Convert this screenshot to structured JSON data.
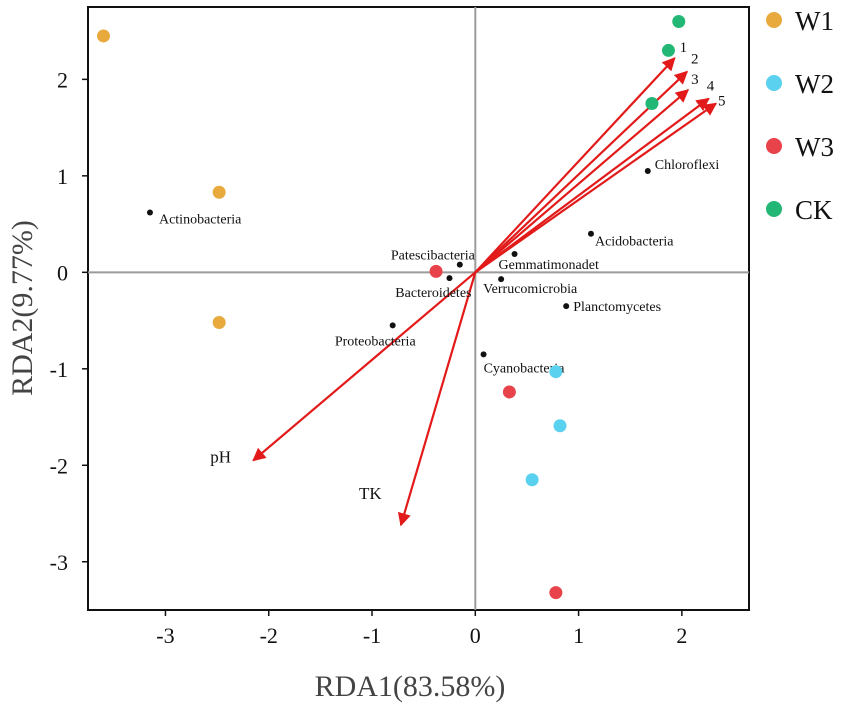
{
  "chart_data": {
    "type": "scatter",
    "title": "",
    "xlabel": "RDA1(83.58%)",
    "ylabel": "RDA2(9.77%)",
    "xlim": [
      -3.75,
      2.65
    ],
    "ylim": [
      -3.5,
      2.75
    ],
    "xticks": [
      -3,
      -2,
      -1,
      0,
      1,
      2
    ],
    "yticks": [
      2,
      1,
      0,
      -1,
      -2,
      -3
    ],
    "grid": false,
    "legend_position": "right",
    "colors": {
      "W1": "#E8AA3C",
      "W2": "#5BD1F0",
      "W3": "#E8434B",
      "CK": "#23B776",
      "arrow": "#E21A1A",
      "species": "#111111",
      "zero_line": "#9B9B9B"
    },
    "series": [
      {
        "name": "W1",
        "points": [
          [
            -3.6,
            2.45
          ],
          [
            -2.48,
            0.83
          ],
          [
            -2.48,
            -0.52
          ]
        ]
      },
      {
        "name": "W2",
        "points": [
          [
            0.78,
            -1.03
          ],
          [
            0.82,
            -1.59
          ],
          [
            0.55,
            -2.15
          ]
        ]
      },
      {
        "name": "W3",
        "points": [
          [
            -0.38,
            0.01
          ],
          [
            0.33,
            -1.24
          ],
          [
            0.78,
            -3.32
          ]
        ]
      },
      {
        "name": "CK",
        "points": [
          [
            1.97,
            2.6
          ],
          [
            1.87,
            2.3
          ],
          [
            1.71,
            1.75
          ]
        ]
      }
    ],
    "species": [
      {
        "name": "Actinobacteria",
        "x": -3.15,
        "y": 0.62
      },
      {
        "name": "Patescibacteria",
        "x": -0.15,
        "y": 0.08
      },
      {
        "name": "Bacteroidetes",
        "x": -0.25,
        "y": -0.06
      },
      {
        "name": "Gemmatimonadet",
        "x": 0.38,
        "y": 0.19
      },
      {
        "name": "Verrucomicrobia",
        "x": 0.25,
        "y": -0.07
      },
      {
        "name": "Proteobacteria",
        "x": -0.8,
        "y": -0.55
      },
      {
        "name": "Cyanobacteria",
        "x": 0.08,
        "y": -0.85
      },
      {
        "name": "Chloroflexi",
        "x": 1.67,
        "y": 1.05
      },
      {
        "name": "Acidobacteria",
        "x": 1.12,
        "y": 0.4
      },
      {
        "name": "Planctomycetes",
        "x": 0.88,
        "y": -0.35
      }
    ],
    "arrows": [
      {
        "name": "1",
        "x": 1.93,
        "y": 2.22
      },
      {
        "name": "2",
        "x": 2.05,
        "y": 2.08
      },
      {
        "name": "3",
        "x": 2.06,
        "y": 1.89
      },
      {
        "name": "4",
        "x": 2.26,
        "y": 1.8
      },
      {
        "name": "5",
        "x": 2.33,
        "y": 1.75
      },
      {
        "name": "pH",
        "x": -2.15,
        "y": -1.95
      },
      {
        "name": "TK",
        "x": -0.72,
        "y": -2.62
      }
    ]
  }
}
